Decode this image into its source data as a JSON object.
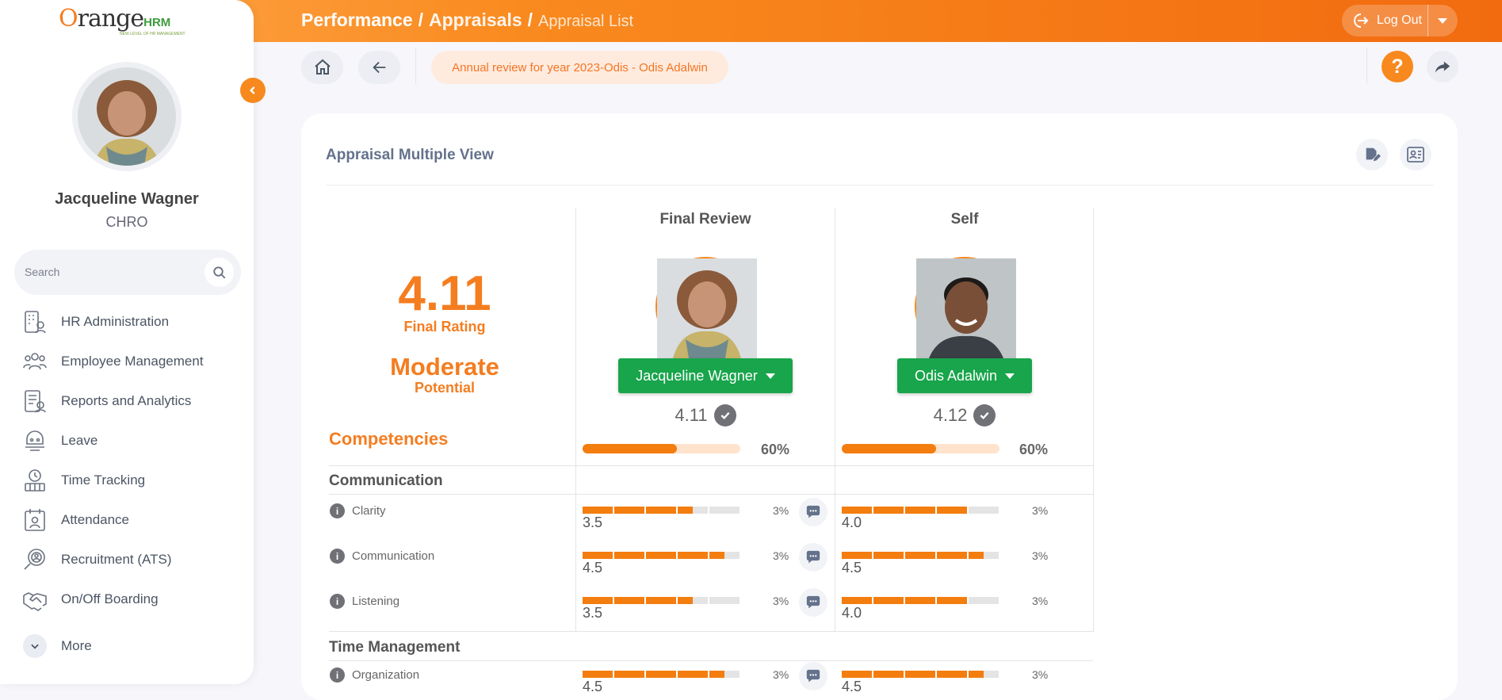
{
  "header": {
    "crumb1": "Performance",
    "crumb2": "Appraisals",
    "crumb3": "Appraisal List",
    "logout_label": "Log Out"
  },
  "brand": {
    "name_part1": "Orange",
    "name_part2": "HRM",
    "tagline": "NEW LEVEL OF HR MANAGEMENT"
  },
  "user": {
    "name": "Jacqueline Wagner",
    "role": "CHRO"
  },
  "search": {
    "placeholder": "Search"
  },
  "nav": [
    {
      "label": "HR Administration",
      "icon": "hr-admin-icon"
    },
    {
      "label": "Employee Management",
      "icon": "employees-icon"
    },
    {
      "label": "Reports and Analytics",
      "icon": "reports-icon"
    },
    {
      "label": "Leave",
      "icon": "leave-icon"
    },
    {
      "label": "Time Tracking",
      "icon": "time-icon"
    },
    {
      "label": "Attendance",
      "icon": "attendance-icon"
    },
    {
      "label": "Recruitment (ATS)",
      "icon": "recruitment-icon"
    },
    {
      "label": "On/Off Boarding",
      "icon": "handshake-icon"
    },
    {
      "label": "More",
      "icon": "chevron-down-icon"
    }
  ],
  "toolbar": {
    "review_chip": "Annual review for year 2023-Odis - Odis Adalwin",
    "help": "?"
  },
  "card": {
    "title": "Appraisal Multiple View",
    "final_rating": "4.11",
    "final_rating_label": "Final Rating",
    "potential": "Moderate",
    "potential_label": "Potential",
    "competencies_label": "Competencies"
  },
  "reviewers": [
    {
      "column": "Final Review",
      "name": "Jacqueline Wagner",
      "score": "4.11",
      "progress_pct": "60%",
      "progress": 0.6
    },
    {
      "column": "Self",
      "name": "Odis Adalwin",
      "score": "4.12",
      "progress_pct": "60%",
      "progress": 0.6
    }
  ],
  "sections": [
    {
      "title": "Communication",
      "items": [
        {
          "name": "Clarity",
          "weight": "3%",
          "final": "3.5",
          "self": "4.0"
        },
        {
          "name": "Communication",
          "weight": "3%",
          "final": "4.5",
          "self": "4.5"
        },
        {
          "name": "Listening",
          "weight": "3%",
          "final": "3.5",
          "self": "4.0"
        }
      ]
    },
    {
      "title": "Time Management",
      "items": [
        {
          "name": "Organization",
          "weight": "3%",
          "final": "4.5",
          "self": "4.5"
        }
      ]
    }
  ]
}
